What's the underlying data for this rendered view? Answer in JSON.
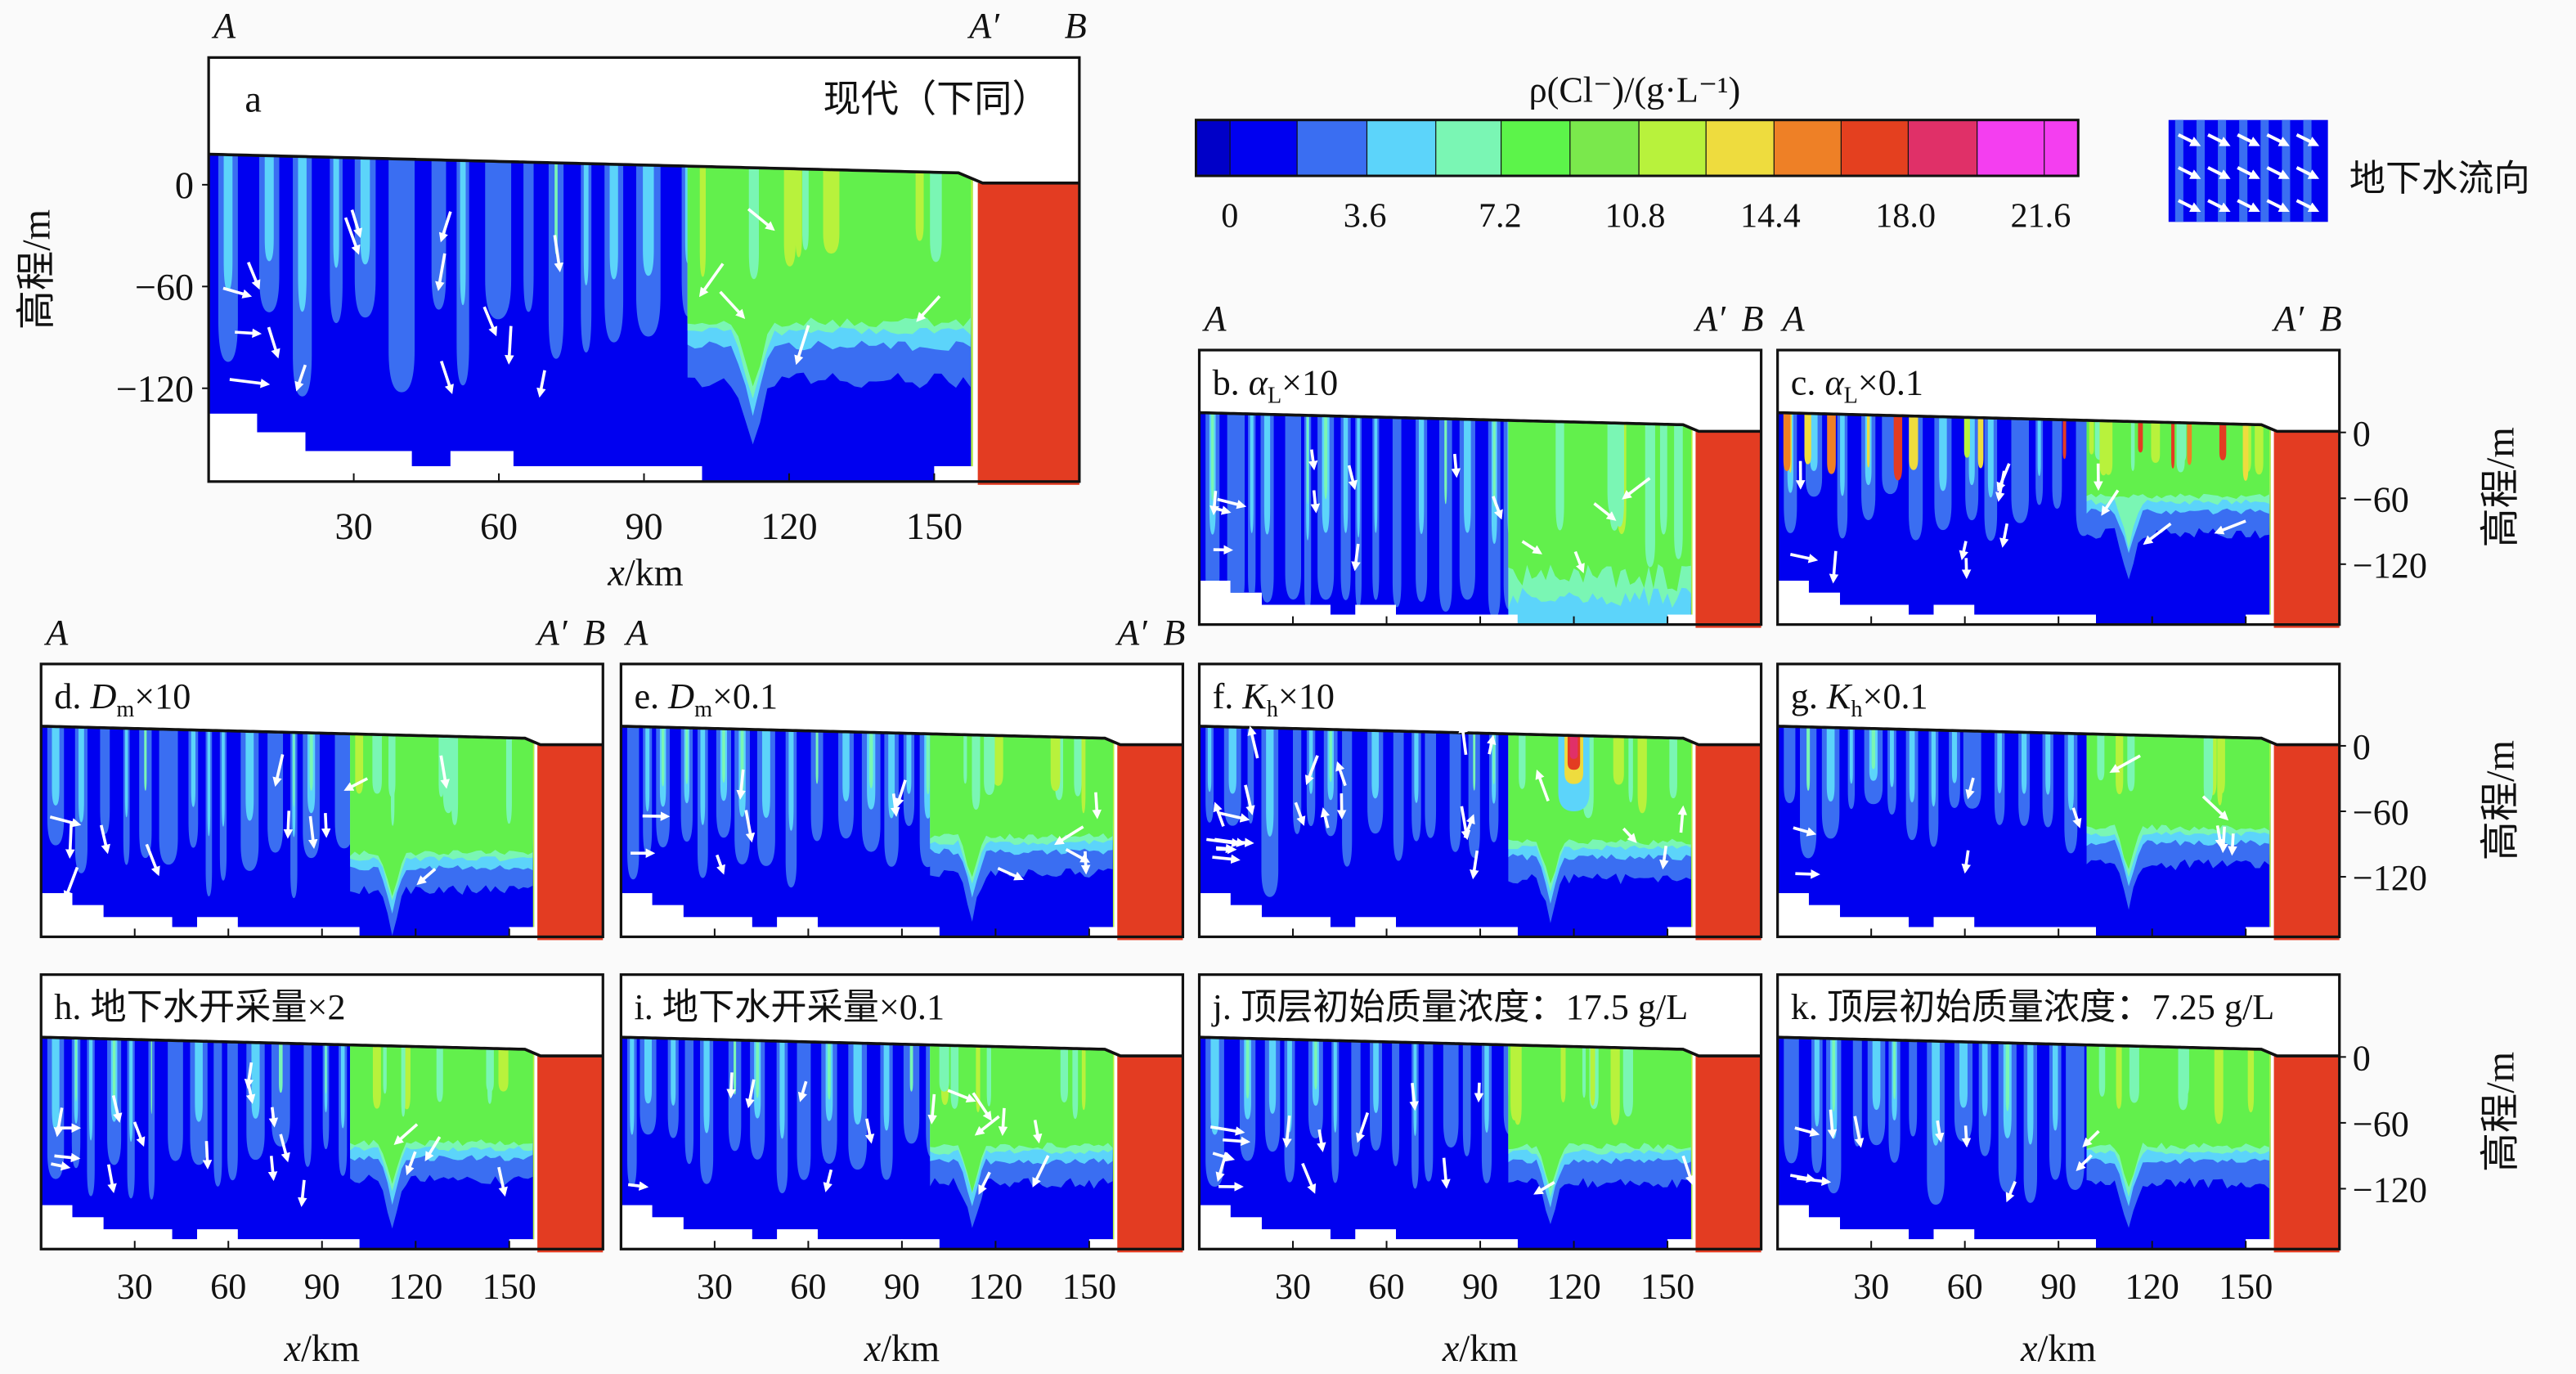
{
  "figure": {
    "colorbar_title": "ρ(Cl⁻)/(g·L⁻¹)",
    "legend_flow_label": "地下水流向",
    "legend_flow_icon": "groundwater-flow-arrow-icon"
  },
  "chart_data": {
    "type": "heatmap",
    "title": "",
    "xlabel_var": "x",
    "xlabel_unit": "/km",
    "ylabel": "高程/m",
    "xlim": [
      0,
      180
    ],
    "ylim": [
      -175,
      75
    ],
    "xticks": [
      30,
      60,
      90,
      120,
      150
    ],
    "xtick_labels": [
      "30",
      "60",
      "90",
      "120",
      "150"
    ],
    "yticks": [
      0,
      -60,
      -120
    ],
    "ytick_labels": [
      "0",
      "−60",
      "−120"
    ],
    "section_labels": {
      "start": "A",
      "mid": "A′",
      "end": "B"
    },
    "sea_boundary_km": 160,
    "colorbar": {
      "label": "ρ(Cl⁻)/(g·L⁻¹)",
      "range": [
        -0.9,
        22.6
      ],
      "ticks": [
        0,
        3.6,
        7.2,
        10.8,
        14.4,
        18.0,
        21.6
      ],
      "tick_labels": [
        "0",
        "3.6",
        "7.2",
        "10.8",
        "14.4",
        "18.0",
        "21.6"
      ],
      "colors": [
        "#0000c8",
        "#0000f0",
        "#3a6ef2",
        "#5cd4fa",
        "#7af6b4",
        "#5cf44a",
        "#7ae84c",
        "#b8f23c",
        "#eedc3e",
        "#ee8026",
        "#e4401f",
        "#e03068",
        "#f43ef0",
        "#f43ef0"
      ]
    },
    "panels": [
      {
        "id": "a",
        "prefix": "a",
        "symbol": "",
        "sub": "",
        "suffix": "",
        "note": "现代（下同）"
      },
      {
        "id": "b",
        "prefix": "b. ",
        "symbol": "α",
        "sub": "L",
        "suffix": "×10"
      },
      {
        "id": "c",
        "prefix": "c. ",
        "symbol": "α",
        "sub": "L",
        "suffix": "×0.1"
      },
      {
        "id": "d",
        "prefix": "d. ",
        "symbol": "D",
        "sub": "m",
        "suffix": "×10"
      },
      {
        "id": "e",
        "prefix": "e. ",
        "symbol": "D",
        "sub": "m",
        "suffix": "×0.1"
      },
      {
        "id": "f",
        "prefix": "f. ",
        "symbol": "K",
        "sub": "h",
        "suffix": "×10"
      },
      {
        "id": "g",
        "prefix": "g. ",
        "symbol": "K",
        "sub": "h",
        "suffix": "×0.1"
      },
      {
        "id": "h",
        "prefix": "h. 地下水开采量×2",
        "symbol": "",
        "sub": "",
        "suffix": ""
      },
      {
        "id": "i",
        "prefix": "i. 地下水开采量×0.1",
        "symbol": "",
        "sub": "",
        "suffix": ""
      },
      {
        "id": "j",
        "prefix": "j. 顶层初始质量浓度：17.5 g/L",
        "symbol": "",
        "sub": "",
        "suffix": ""
      },
      {
        "id": "k",
        "prefix": "k. 顶层初始质量浓度：7.25 g/L",
        "symbol": "",
        "sub": "",
        "suffix": ""
      }
    ]
  }
}
